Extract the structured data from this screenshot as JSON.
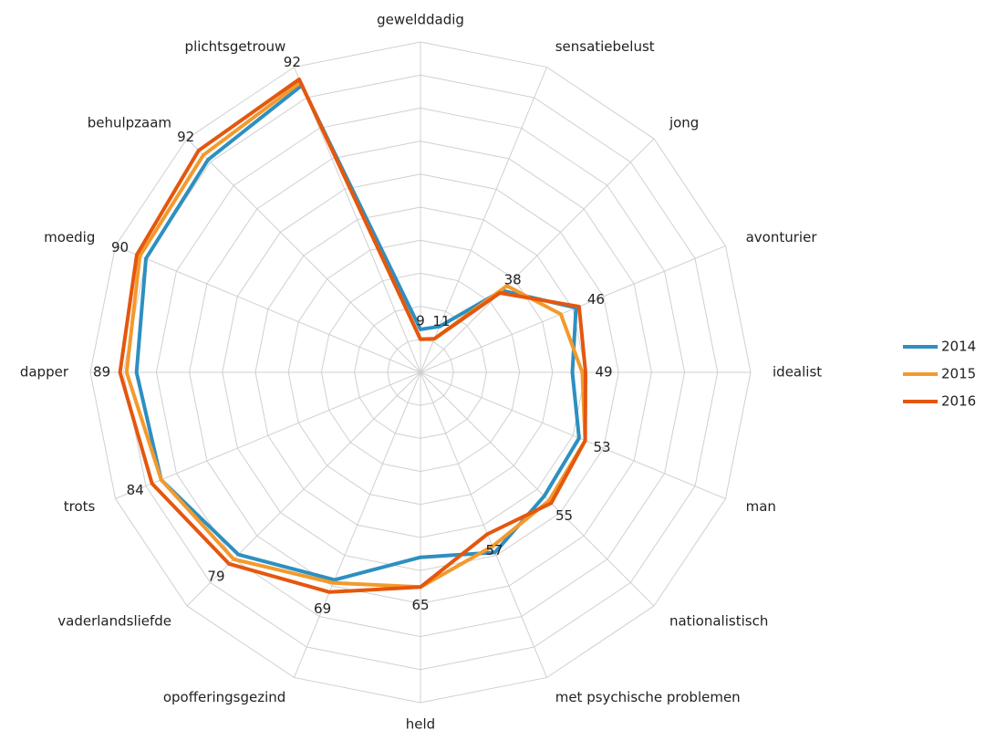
{
  "chart_data": {
    "type": "radar",
    "categories": [
      "gewelddadig",
      "sensatiebelust",
      "jong",
      "avonturier",
      "idealist",
      "man",
      "nationalistisch",
      "met psychische problemen",
      "held",
      "opofferingsgezind",
      "vaderlandsliefde",
      "trots",
      "dapper",
      "moedig",
      "behulpzaam",
      "plichtsgetrouw"
    ],
    "series": [
      {
        "name": "2014",
        "color": "#2e8fc0",
        "values": [
          13,
          15,
          35,
          51,
          46,
          52,
          53,
          59,
          56,
          68,
          78,
          85,
          86,
          90,
          91,
          94
        ]
      },
      {
        "name": "2015",
        "color": "#f39a2c",
        "values": [
          10,
          11,
          37,
          46,
          49,
          54,
          55,
          57,
          65,
          69,
          80,
          85,
          89,
          92,
          93,
          95
        ]
      },
      {
        "name": "2016",
        "color": "#e4570e",
        "values": [
          10,
          11,
          34,
          52,
          50,
          54,
          56,
          53,
          65,
          72,
          82,
          88,
          91,
          93,
          95,
          96
        ]
      }
    ],
    "data_labels": [
      9,
      11,
      38,
      46,
      49,
      53,
      55,
      57,
      65,
      69,
      79,
      84,
      89,
      90,
      92,
      92
    ],
    "ylim": [
      0,
      100
    ],
    "yticks": [
      0,
      10,
      20,
      30,
      40,
      50,
      60,
      70,
      80,
      90,
      100
    ],
    "grid": true,
    "legend": "right"
  }
}
